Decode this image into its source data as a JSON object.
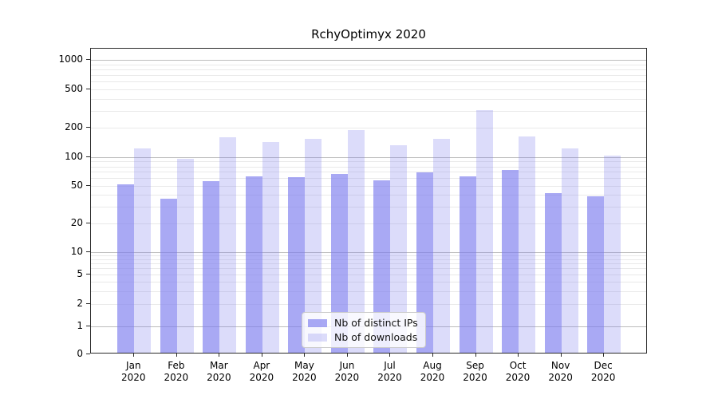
{
  "chart_data": {
    "type": "bar",
    "title": "RchyOptimyx 2020",
    "categories": [
      "Jan",
      "Feb",
      "Mar",
      "Apr",
      "May",
      "Jun",
      "Jul",
      "Aug",
      "Sep",
      "Oct",
      "Nov",
      "Dec"
    ],
    "category_year": "2020",
    "series": [
      {
        "name": "Nb of distinct IPs",
        "values": [
          50,
          35,
          54,
          60,
          59,
          64,
          55,
          67,
          60,
          70,
          40,
          37
        ],
        "color": "rgba(124,124,238,0.66)"
      },
      {
        "name": "Nb of downloads",
        "values": [
          118,
          92,
          155,
          137,
          150,
          183,
          127,
          150,
          295,
          158,
          118,
          100
        ],
        "color": "rgba(124,124,238,0.27)"
      }
    ],
    "yscale": "symlog",
    "ytick_labels": [
      0,
      1,
      2,
      5,
      10,
      20,
      50,
      100,
      200,
      500,
      1000
    ],
    "ylim": [
      0,
      1300
    ],
    "grid": "on",
    "legend_position": "lower-center",
    "legend_items": [
      "Nb of distinct IPs",
      "Nb of downloads"
    ]
  },
  "colors": {
    "major_grid": "#bdbdbd",
    "minor_grid": "#e9e9e9",
    "spine": "#2b2b2b",
    "text": "#000000"
  }
}
